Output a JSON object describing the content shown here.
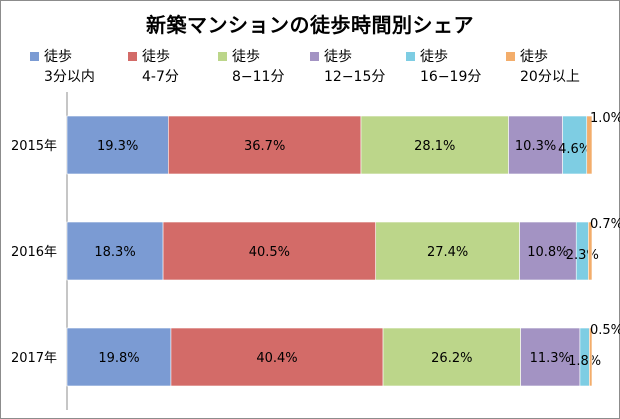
{
  "chart_data": {
    "type": "bar",
    "orientation": "horizontal",
    "stacked": true,
    "title": "新築マンションの徒歩時間別シェア",
    "categories": [
      "2015年",
      "2016年",
      "2017年"
    ],
    "series": [
      {
        "name": "徒歩\n3分以内",
        "name_line1": "徒歩",
        "name_line2": "3分以内",
        "color": "#7b9bd3",
        "values": [
          19.3,
          18.3,
          19.8
        ]
      },
      {
        "name": "徒歩\n4-7分",
        "name_line1": "徒歩",
        "name_line2": "4-7分",
        "color": "#d36b68",
        "values": [
          36.7,
          40.5,
          40.4
        ]
      },
      {
        "name": "徒歩\n8−11分",
        "name_line1": "徒歩",
        "name_line2": "8−11分",
        "color": "#bcd68a",
        "values": [
          28.1,
          27.4,
          26.2
        ]
      },
      {
        "name": "徒歩\n12−15分",
        "name_line1": "徒歩",
        "name_line2": "12−15分",
        "color": "#a393c3",
        "values": [
          10.3,
          10.8,
          11.3
        ]
      },
      {
        "name": "徒歩\n16−19分",
        "name_line1": "徒歩",
        "name_line2": "16−19分",
        "color": "#7ecde3",
        "values": [
          4.6,
          2.3,
          1.8
        ]
      },
      {
        "name": "徒歩\n20分以上",
        "name_line1": "徒歩",
        "name_line2": "20分以上",
        "color": "#f3ad6b",
        "values": [
          1.0,
          0.7,
          0.5
        ]
      }
    ],
    "data_labels": [
      [
        "19.3%",
        "36.7%",
        "28.1%",
        "10.3%",
        "4.6%",
        "1.0%"
      ],
      [
        "18.3%",
        "40.5%",
        "27.4%",
        "10.8%",
        "2.3%",
        "0.7%"
      ],
      [
        "19.8%",
        "40.4%",
        "26.2%",
        "11.3%",
        "1.8%",
        "0.5%"
      ]
    ],
    "xlim": [
      0,
      100
    ],
    "legend": "top",
    "grid": false
  }
}
